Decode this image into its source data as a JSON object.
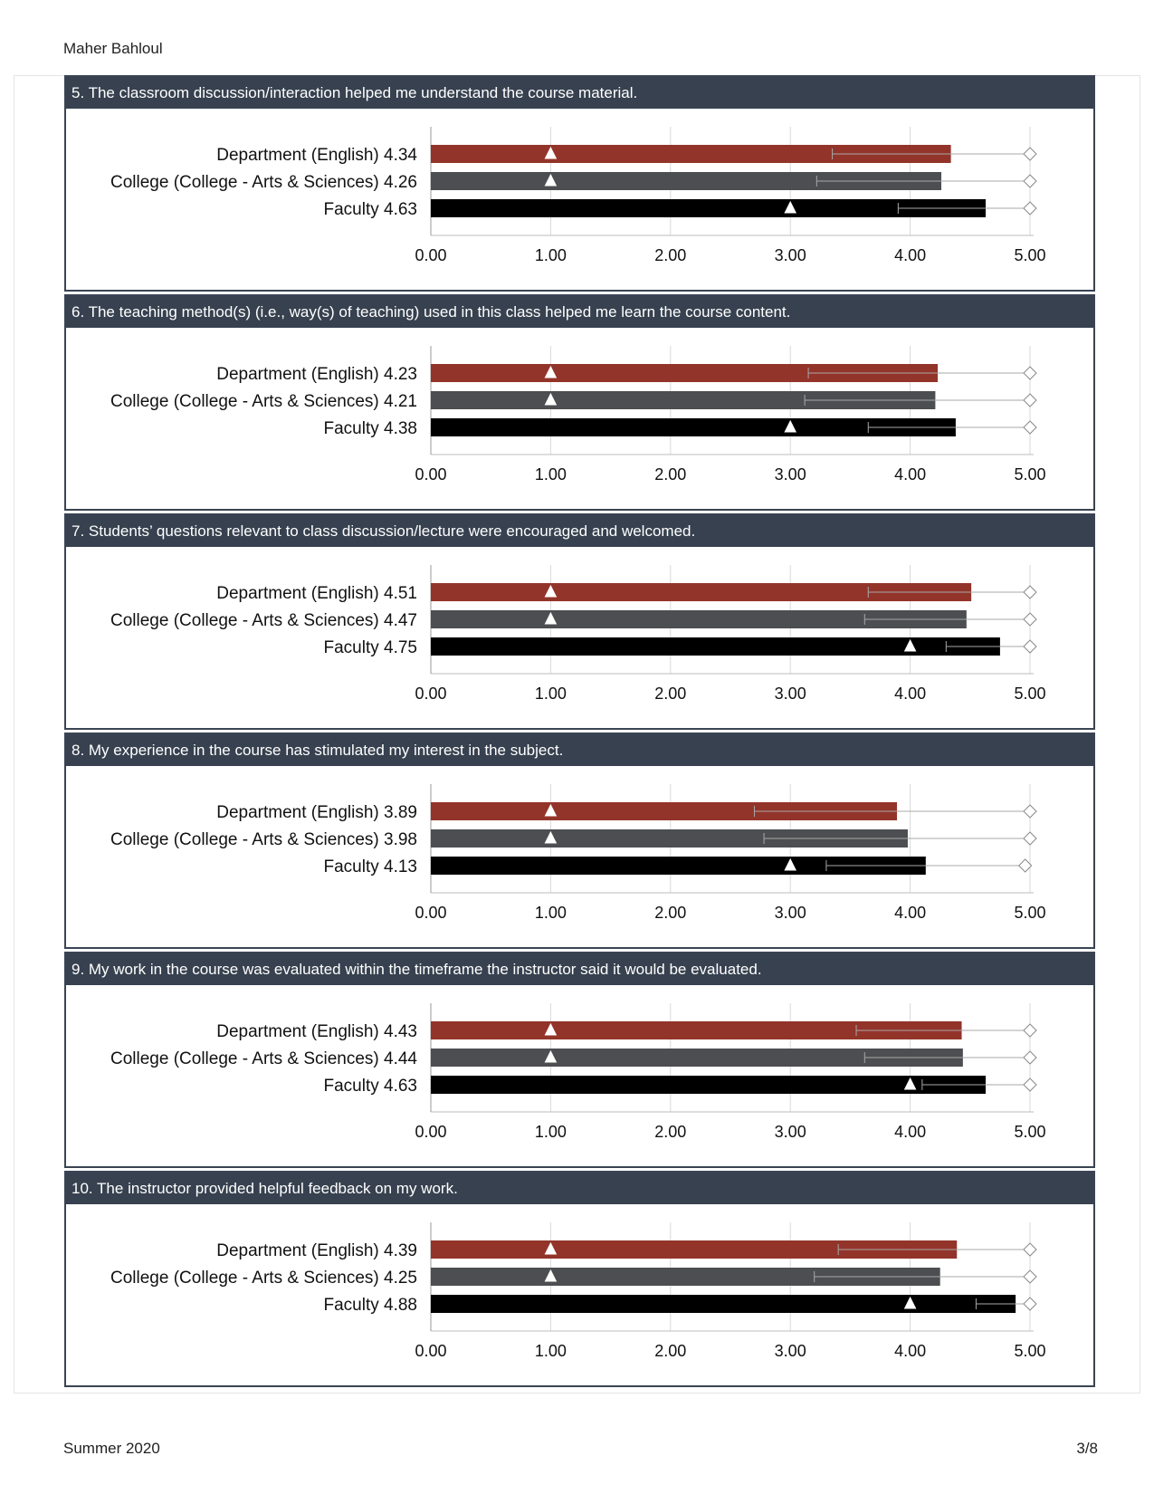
{
  "header": {
    "name": "Maher Bahloul"
  },
  "footer": {
    "term": "Summer 2020",
    "page": "3/8"
  },
  "colors": {
    "department": "#93342a",
    "college": "#4d4e51",
    "faculty": "#000000",
    "title_bg": "#37414f",
    "grid": "#d8d8d8"
  },
  "chart_data": [
    {
      "type": "bar",
      "title": "5. The classroom discussion/interaction helped me understand the course material.",
      "categories": [
        "Department (English) 4.34",
        "College (College - Arts & Sciences) 4.26",
        "Faculty 4.63"
      ],
      "values": [
        4.34,
        4.26,
        4.63
      ],
      "marker_triangle": [
        1.0,
        1.0,
        3.0
      ],
      "whisker_low": [
        3.35,
        3.22,
        3.9
      ],
      "marker_diamond": [
        5.0,
        5.0,
        5.0
      ],
      "xlim": [
        0,
        5
      ],
      "xticks": [
        "0.00",
        "1.00",
        "2.00",
        "3.00",
        "4.00",
        "5.00"
      ]
    },
    {
      "type": "bar",
      "title": "6. The teaching method(s) (i.e., way(s) of teaching) used in this class helped me learn the course content.",
      "categories": [
        "Department (English) 4.23",
        "College (College - Arts & Sciences) 4.21",
        "Faculty 4.38"
      ],
      "values": [
        4.23,
        4.21,
        4.38
      ],
      "marker_triangle": [
        1.0,
        1.0,
        3.0
      ],
      "whisker_low": [
        3.15,
        3.12,
        3.65
      ],
      "marker_diamond": [
        5.0,
        5.0,
        5.0
      ],
      "xlim": [
        0,
        5
      ],
      "xticks": [
        "0.00",
        "1.00",
        "2.00",
        "3.00",
        "4.00",
        "5.00"
      ]
    },
    {
      "type": "bar",
      "title": "7. Students’ questions relevant to class discussion/lecture were encouraged and welcomed.",
      "categories": [
        "Department (English) 4.51",
        "College (College - Arts & Sciences) 4.47",
        "Faculty 4.75"
      ],
      "values": [
        4.51,
        4.47,
        4.75
      ],
      "marker_triangle": [
        1.0,
        1.0,
        4.0
      ],
      "whisker_low": [
        3.65,
        3.62,
        4.3
      ],
      "marker_diamond": [
        5.0,
        5.0,
        5.0
      ],
      "xlim": [
        0,
        5
      ],
      "xticks": [
        "0.00",
        "1.00",
        "2.00",
        "3.00",
        "4.00",
        "5.00"
      ]
    },
    {
      "type": "bar",
      "title": "8. My experience in the course has stimulated my interest in the subject.",
      "categories": [
        "Department (English) 3.89",
        "College (College - Arts & Sciences) 3.98",
        "Faculty 4.13"
      ],
      "values": [
        3.89,
        3.98,
        4.13
      ],
      "marker_triangle": [
        1.0,
        1.0,
        3.0
      ],
      "whisker_low": [
        2.7,
        2.78,
        3.3
      ],
      "marker_diamond": [
        5.0,
        5.0,
        4.96
      ],
      "xlim": [
        0,
        5
      ],
      "xticks": [
        "0.00",
        "1.00",
        "2.00",
        "3.00",
        "4.00",
        "5.00"
      ]
    },
    {
      "type": "bar",
      "title": "9. My work in the course was evaluated within the timeframe the instructor said it would be evaluated.",
      "categories": [
        "Department (English) 4.43",
        "College (College - Arts & Sciences) 4.44",
        "Faculty 4.63"
      ],
      "values": [
        4.43,
        4.44,
        4.63
      ],
      "marker_triangle": [
        1.0,
        1.0,
        4.0
      ],
      "whisker_low": [
        3.55,
        3.62,
        4.1
      ],
      "marker_diamond": [
        5.0,
        5.0,
        5.0
      ],
      "xlim": [
        0,
        5
      ],
      "xticks": [
        "0.00",
        "1.00",
        "2.00",
        "3.00",
        "4.00",
        "5.00"
      ]
    },
    {
      "type": "bar",
      "title": "10. The instructor provided helpful feedback on my work.",
      "categories": [
        "Department (English) 4.39",
        "College (College - Arts & Sciences) 4.25",
        "Faculty 4.88"
      ],
      "values": [
        4.39,
        4.25,
        4.88
      ],
      "marker_triangle": [
        1.0,
        1.0,
        4.0
      ],
      "whisker_low": [
        3.4,
        3.2,
        4.55
      ],
      "marker_diamond": [
        5.0,
        5.0,
        5.0
      ],
      "xlim": [
        0,
        5
      ],
      "xticks": [
        "0.00",
        "1.00",
        "2.00",
        "3.00",
        "4.00",
        "5.00"
      ]
    }
  ]
}
